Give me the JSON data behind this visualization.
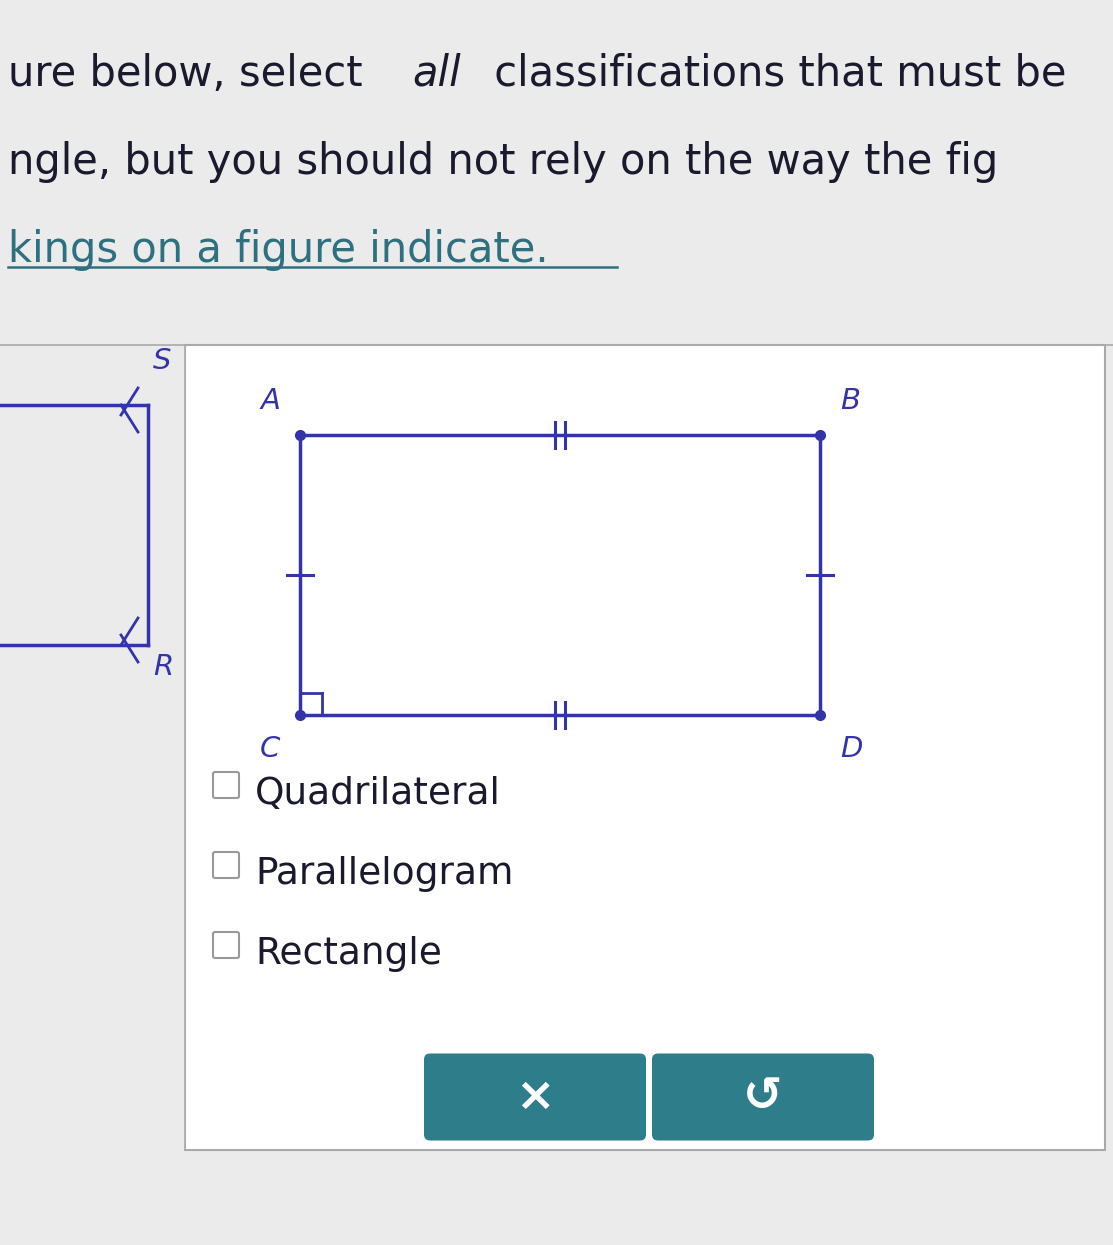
{
  "bg_color": "#ebebeb",
  "white_bg": "#ffffff",
  "blue_color": "#3333aa",
  "dark_text": "#1a1a2e",
  "teal_text": "#2e7080",
  "line1_pre": "ure below, select ",
  "line1_italic": "all",
  "line1_post": " classifications that must be",
  "line2": "ngle, but you should not rely on the way the fig",
  "line3": "kings on a figure indicate.",
  "left_label_S": "S",
  "left_label_R": "R",
  "rect_label_A": "A",
  "rect_label_B": "B",
  "rect_label_C": "C",
  "rect_label_D": "D",
  "checkbox_items": [
    "Quadrilateral",
    "Parallelogram",
    "Rectangle"
  ],
  "btn_color": "#2e7d8a",
  "btn_x_text": "×",
  "btn_undo_text": "↺",
  "text_fontsize": 30,
  "label_fontsize": 21,
  "checkbox_fontsize": 27,
  "btn_fontsize": 34
}
